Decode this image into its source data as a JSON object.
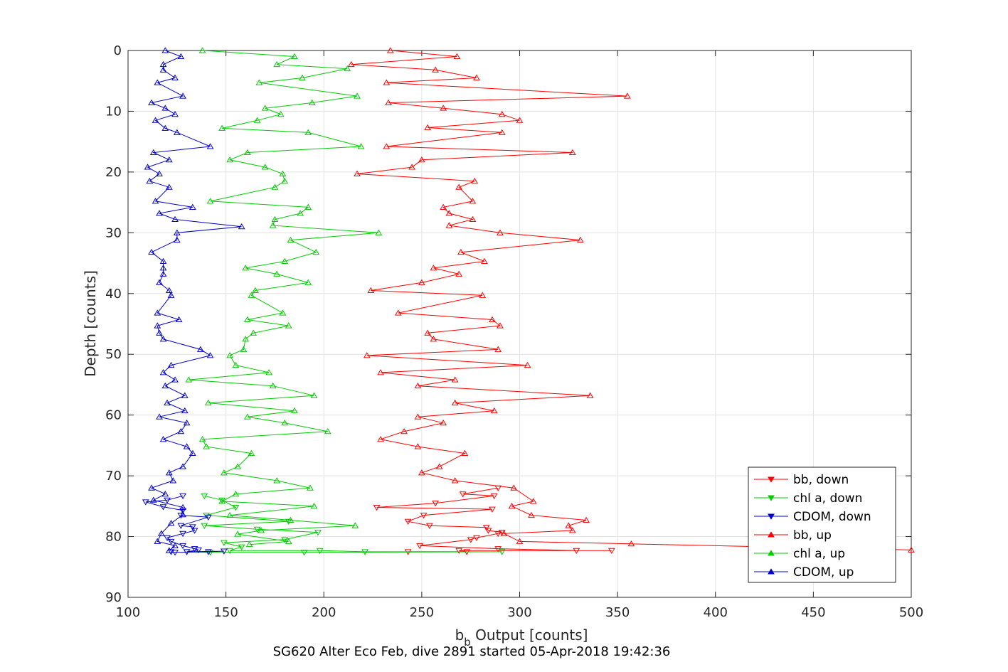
{
  "chart_data": {
    "type": "line",
    "title": "",
    "caption": "SG620 Alter Eco Feb, dive 2891 started 05-Apr-2018 19:42:36",
    "xlabel_main": "b",
    "xlabel_sub": "b",
    "xlabel_rest": " Output [counts]",
    "ylabel": "Depth [counts]",
    "xlim": [
      100,
      500
    ],
    "ylim": [
      0,
      90
    ],
    "y_reversed": true,
    "grid": true,
    "legend_position": "bottom-right",
    "x_ticks": [
      100,
      150,
      200,
      250,
      300,
      350,
      400,
      450,
      500
    ],
    "y_ticks": [
      0,
      10,
      20,
      30,
      40,
      50,
      60,
      70,
      80,
      90
    ],
    "series": [
      {
        "name": "bb, down",
        "color": "#ff0000",
        "marker": "triangle-down",
        "points": [
          [
            289,
            72
          ],
          [
            271,
            73
          ],
          [
            287,
            73.3
          ],
          [
            257,
            74.5
          ],
          [
            227,
            75.2
          ],
          [
            286,
            75.5
          ],
          [
            251,
            76.5
          ],
          [
            243,
            77.5
          ],
          [
            254,
            78.2
          ],
          [
            283,
            78.5
          ],
          [
            284,
            79
          ],
          [
            291,
            79.3
          ],
          [
            289,
            79.5
          ],
          [
            278,
            80.2
          ],
          [
            275,
            80.5
          ],
          [
            249,
            81.5
          ],
          [
            289,
            82
          ],
          [
            329,
            82.3
          ],
          [
            347,
            82.3
          ],
          [
            269,
            82.3
          ],
          [
            273,
            82.5
          ],
          [
            243,
            82.5
          ]
        ]
      },
      {
        "name": "chl a, down",
        "color": "#00cc00",
        "marker": "triangle-down",
        "points": [
          [
            139,
            73.3
          ],
          [
            148,
            74
          ],
          [
            155,
            75.2
          ],
          [
            140,
            76.5
          ],
          [
            182,
            77.5
          ],
          [
            139,
            78.2
          ],
          [
            166,
            78.8
          ],
          [
            197,
            79.3
          ],
          [
            180,
            80.5
          ],
          [
            149,
            81
          ],
          [
            158,
            81.7
          ],
          [
            152,
            82.3
          ],
          [
            198,
            82.3
          ],
          [
            221,
            82.5
          ],
          [
            291,
            82.5
          ],
          [
            190,
            82.6
          ],
          [
            142,
            82.6
          ],
          [
            130,
            82.5
          ]
        ]
      },
      {
        "name": "CDOM, down",
        "color": "#0000cc",
        "marker": "triangle-down",
        "points": [
          [
            128,
            73.3
          ],
          [
            120,
            74
          ],
          [
            109,
            74.3
          ],
          [
            118,
            75.1
          ],
          [
            128,
            75.7
          ],
          [
            127,
            76.5
          ],
          [
            141,
            76.8
          ],
          [
            127,
            78.2
          ],
          [
            133,
            78.4
          ],
          [
            134,
            79
          ],
          [
            128,
            79.5
          ],
          [
            120,
            80.2
          ],
          [
            122,
            80.8
          ],
          [
            128,
            81.5
          ],
          [
            134,
            82
          ],
          [
            136,
            82.2
          ],
          [
            130,
            82.5
          ],
          [
            149,
            82.4
          ],
          [
            141,
            82.5
          ],
          [
            124,
            82.6
          ],
          [
            122,
            82.5
          ]
        ]
      },
      {
        "name": "bb, up",
        "color": "#ff0000",
        "marker": "triangle-up",
        "points": [
          [
            234,
            0
          ],
          [
            268,
            1
          ],
          [
            214,
            2.3
          ],
          [
            257,
            3.2
          ],
          [
            278,
            4.5
          ],
          [
            232,
            5.3
          ],
          [
            355,
            7.5
          ],
          [
            233,
            8.6
          ],
          [
            261,
            9.5
          ],
          [
            291,
            10.5
          ],
          [
            300,
            11.5
          ],
          [
            253,
            12.7
          ],
          [
            291,
            13.5
          ],
          [
            232,
            15.8
          ],
          [
            327,
            16.8
          ],
          [
            250,
            18
          ],
          [
            245,
            19.2
          ],
          [
            217,
            20.3
          ],
          [
            277,
            21.5
          ],
          [
            269,
            22.5
          ],
          [
            276,
            24.8
          ],
          [
            261,
            25.8
          ],
          [
            264,
            26.8
          ],
          [
            276,
            27.8
          ],
          [
            264,
            28.8
          ],
          [
            290,
            30
          ],
          [
            331,
            31.2
          ],
          [
            270,
            33.2
          ],
          [
            282,
            34.7
          ],
          [
            256,
            35.8
          ],
          [
            269,
            36.8
          ],
          [
            250,
            38.2
          ],
          [
            224,
            39.5
          ],
          [
            281,
            40.3
          ],
          [
            238,
            43.2
          ],
          [
            286,
            44.3
          ],
          [
            290,
            45.3
          ],
          [
            253,
            46.5
          ],
          [
            256,
            47.5
          ],
          [
            289,
            49.2
          ],
          [
            222,
            50.2
          ],
          [
            304,
            51.8
          ],
          [
            229,
            53
          ],
          [
            267,
            54.2
          ],
          [
            248,
            55.2
          ],
          [
            336,
            56.8
          ],
          [
            267,
            58
          ],
          [
            287,
            59.3
          ],
          [
            248,
            60.3
          ],
          [
            261,
            61.3
          ],
          [
            241,
            62.7
          ],
          [
            229,
            64
          ],
          [
            248,
            65.2
          ],
          [
            272,
            66.3
          ],
          [
            259,
            68.5
          ],
          [
            250,
            69.5
          ],
          [
            267,
            70.8
          ],
          [
            297,
            72
          ],
          [
            307,
            74.2
          ],
          [
            296,
            75
          ],
          [
            306,
            76.5
          ],
          [
            334,
            77.3
          ],
          [
            325,
            78.2
          ],
          [
            327,
            79
          ],
          [
            292,
            79.5
          ],
          [
            300,
            80.8
          ],
          [
            357,
            81.2
          ],
          [
            500,
            82.2
          ]
        ]
      },
      {
        "name": "chl a, up",
        "color": "#00cc00",
        "marker": "triangle-up",
        "points": [
          [
            138,
            0
          ],
          [
            185,
            1
          ],
          [
            176,
            2.3
          ],
          [
            212,
            3
          ],
          [
            189,
            4.5
          ],
          [
            167,
            5.3
          ],
          [
            217,
            7.5
          ],
          [
            194,
            8.6
          ],
          [
            170,
            9.5
          ],
          [
            178,
            10.5
          ],
          [
            166,
            11.5
          ],
          [
            148,
            12.8
          ],
          [
            192,
            13.5
          ],
          [
            219,
            15.8
          ],
          [
            161,
            16.8
          ],
          [
            152,
            18
          ],
          [
            170,
            19.2
          ],
          [
            179,
            20.3
          ],
          [
            180,
            21.5
          ],
          [
            175,
            22.5
          ],
          [
            142,
            24.8
          ],
          [
            192,
            25.8
          ],
          [
            188,
            26.8
          ],
          [
            175,
            27.8
          ],
          [
            174,
            28.8
          ],
          [
            228,
            30
          ],
          [
            183,
            31.2
          ],
          [
            196,
            33.2
          ],
          [
            180,
            34.7
          ],
          [
            160,
            35.8
          ],
          [
            176,
            36.8
          ],
          [
            192,
            38.2
          ],
          [
            165,
            39.5
          ],
          [
            163,
            40.3
          ],
          [
            179,
            43.2
          ],
          [
            161,
            44.3
          ],
          [
            182,
            45.3
          ],
          [
            164,
            46.5
          ],
          [
            160,
            47.5
          ],
          [
            159,
            49.2
          ],
          [
            152,
            50.2
          ],
          [
            155,
            51.8
          ],
          [
            172,
            53
          ],
          [
            131,
            54.2
          ],
          [
            174,
            55.2
          ],
          [
            195,
            56.8
          ],
          [
            141,
            58
          ],
          [
            185,
            59.3
          ],
          [
            161,
            60.3
          ],
          [
            180,
            61.3
          ],
          [
            202,
            62.7
          ],
          [
            138,
            64
          ],
          [
            140,
            65.2
          ],
          [
            163,
            66.3
          ],
          [
            156,
            68.5
          ],
          [
            149,
            69.5
          ],
          [
            176,
            70.8
          ],
          [
            193,
            72
          ],
          [
            155,
            73
          ],
          [
            148,
            74.2
          ],
          [
            195,
            75
          ],
          [
            152,
            76.5
          ],
          [
            183,
            77.3
          ],
          [
            216,
            78.2
          ],
          [
            168,
            79
          ],
          [
            156,
            79.6
          ],
          [
            182,
            80.8
          ],
          [
            162,
            81.3
          ]
        ]
      },
      {
        "name": "CDOM, up",
        "color": "#0000cc",
        "marker": "triangle-up",
        "points": [
          [
            119,
            0
          ],
          [
            127,
            1
          ],
          [
            118,
            2.3
          ],
          [
            118,
            3.2
          ],
          [
            124,
            4.5
          ],
          [
            115,
            5.3
          ],
          [
            128,
            7.5
          ],
          [
            112,
            8.6
          ],
          [
            119,
            9.5
          ],
          [
            124,
            10.5
          ],
          [
            114,
            11.5
          ],
          [
            119,
            12.8
          ],
          [
            125,
            13.5
          ],
          [
            142,
            15.8
          ],
          [
            113,
            16.8
          ],
          [
            121,
            18
          ],
          [
            110,
            19.2
          ],
          [
            116,
            20.3
          ],
          [
            111,
            21.5
          ],
          [
            121,
            22.5
          ],
          [
            114,
            24.8
          ],
          [
            133,
            25.8
          ],
          [
            116,
            26.8
          ],
          [
            124,
            27.8
          ],
          [
            158,
            29
          ],
          [
            125,
            30
          ],
          [
            125,
            31.2
          ],
          [
            112,
            33.2
          ],
          [
            118,
            34.7
          ],
          [
            118,
            35.8
          ],
          [
            118,
            36.8
          ],
          [
            116,
            38.2
          ],
          [
            121,
            39.5
          ],
          [
            122,
            40.3
          ],
          [
            115,
            43.2
          ],
          [
            126,
            44.3
          ],
          [
            115,
            45.3
          ],
          [
            116,
            46.5
          ],
          [
            118,
            47.5
          ],
          [
            137,
            49.2
          ],
          [
            142,
            50.2
          ],
          [
            122,
            51.8
          ],
          [
            118,
            53
          ],
          [
            124,
            54.2
          ],
          [
            119,
            55.2
          ],
          [
            129,
            56.8
          ],
          [
            120,
            58
          ],
          [
            129,
            59.3
          ],
          [
            116,
            60.3
          ],
          [
            130,
            61.3
          ],
          [
            127,
            62.7
          ],
          [
            118,
            64
          ],
          [
            130,
            65.2
          ],
          [
            133,
            66.3
          ],
          [
            128,
            68.5
          ],
          [
            121,
            69.5
          ],
          [
            123,
            70.8
          ],
          [
            112,
            72
          ],
          [
            119,
            73
          ],
          [
            113,
            74
          ],
          [
            128,
            75.2
          ],
          [
            128,
            76.4
          ],
          [
            122,
            77.8
          ],
          [
            117,
            79.5
          ],
          [
            115,
            80.8
          ],
          [
            124,
            81.5
          ],
          [
            121,
            82.3
          ]
        ]
      }
    ]
  }
}
